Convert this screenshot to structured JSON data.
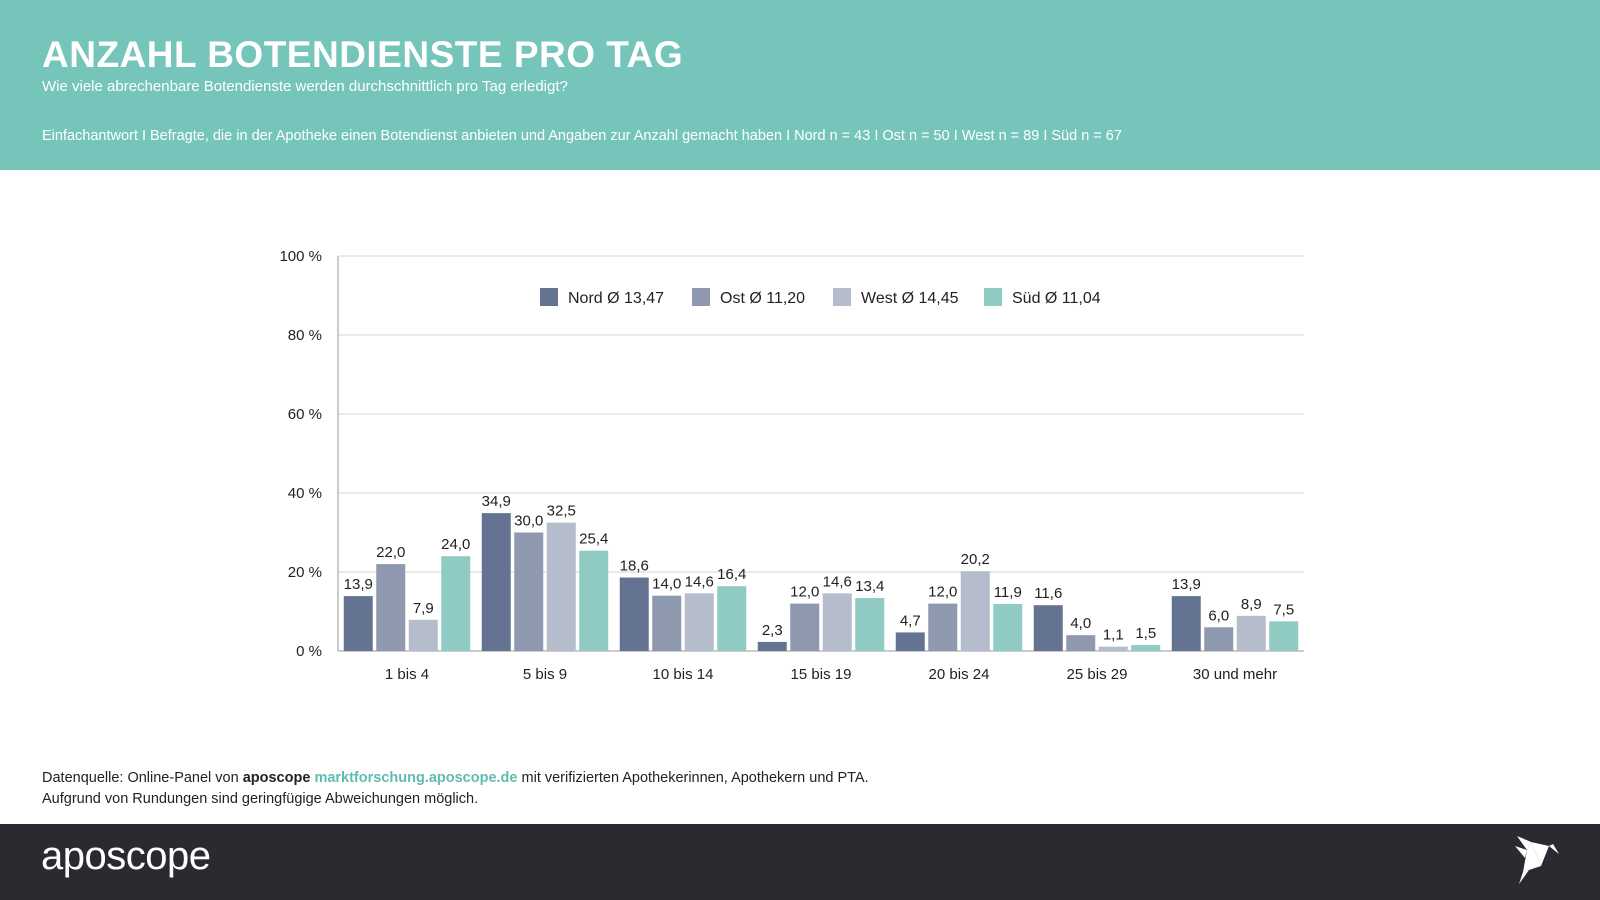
{
  "header": {
    "title": "ANZAHL BOTENDIENSTE PRO TAG",
    "subtitle": "Wie viele abrechenbare Botendienste werden durchschnittlich pro Tag erledigt?",
    "note": "Einfachantwort I Befragte, die in der Apotheke einen Botendienst anbieten und Angaben zur Anzahl gemacht haben I Nord n = 43 I Ost n = 50 I West n = 89 I Süd n = 67"
  },
  "chart_data": {
    "type": "bar",
    "title": "Anzahl Botendienste pro Tag",
    "categories": [
      "1 bis 4",
      "5 bis 9",
      "10 bis 14",
      "15 bis 19",
      "20 bis 24",
      "25 bis 29",
      "30 und mehr"
    ],
    "series": [
      {
        "name": "Nord Ø 13,47",
        "color": "#637391",
        "values": [
          13.9,
          34.9,
          18.6,
          2.3,
          4.7,
          11.6,
          13.9
        ]
      },
      {
        "name": "Ost Ø 11,20",
        "color": "#8e99b0",
        "values": [
          22.0,
          30.0,
          14.0,
          12.0,
          12.0,
          4.0,
          6.0
        ]
      },
      {
        "name": "West Ø 14,45",
        "color": "#b5bccb",
        "values": [
          7.9,
          32.5,
          14.6,
          14.6,
          20.2,
          1.1,
          8.9
        ]
      },
      {
        "name": "Süd Ø 11,04",
        "color": "#8fcbc3",
        "values": [
          24.0,
          25.4,
          16.4,
          13.4,
          11.9,
          1.5,
          7.5
        ]
      }
    ],
    "yticks": [
      "0 %",
      "20 %",
      "40 %",
      "60 %",
      "80 %",
      "100 %"
    ],
    "ylim": [
      0,
      100
    ],
    "grid": true,
    "legend": "top-center"
  },
  "source": {
    "prefix": "Datenquelle: Online-Panel von ",
    "brand": "aposcope",
    "link": "marktforschung.aposcope.de",
    "suffix": " mit verifizierten Apothekerinnen, Apothekern und PTA.",
    "line2": "Aufgrund von Rundungen sind geringfügige Abweichungen möglich."
  },
  "footer": {
    "logo": "aposcope"
  }
}
